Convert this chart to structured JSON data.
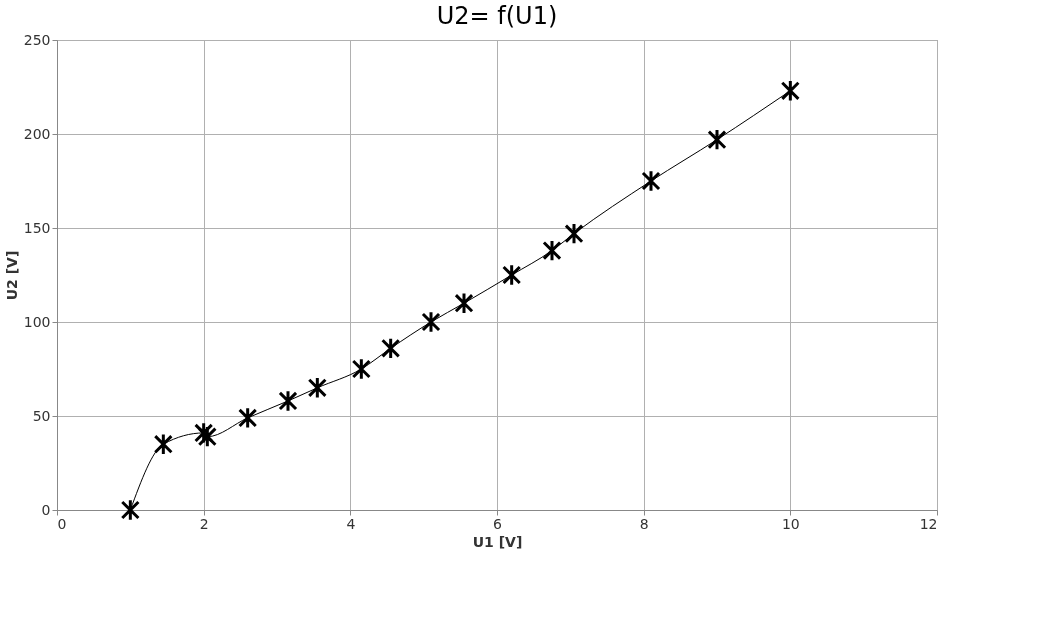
{
  "chart_data": {
    "type": "line",
    "title": "U2= f(U1)",
    "xlabel": "U1 [V]",
    "ylabel": "U2 [V]",
    "x": [
      1.0,
      1.45,
      2.0,
      2.05,
      2.6,
      3.15,
      3.55,
      4.15,
      4.55,
      5.1,
      5.55,
      6.2,
      6.75,
      7.05,
      8.1,
      9.0,
      10.0
    ],
    "series": [
      {
        "color": "#000000",
        "values": [
          0,
          35,
          41,
          39,
          49,
          58,
          65,
          75,
          86,
          100,
          110,
          125,
          138,
          147,
          175,
          197,
          223
        ]
      }
    ],
    "xlim": [
      0,
      12
    ],
    "xticks": [
      0,
      2,
      4,
      6,
      8,
      10,
      12
    ],
    "ylim": [
      0,
      250
    ],
    "yticks": [
      0,
      50,
      100,
      150,
      200,
      250
    ],
    "grid": true,
    "marker": "cross",
    "line_style": "solid"
  }
}
